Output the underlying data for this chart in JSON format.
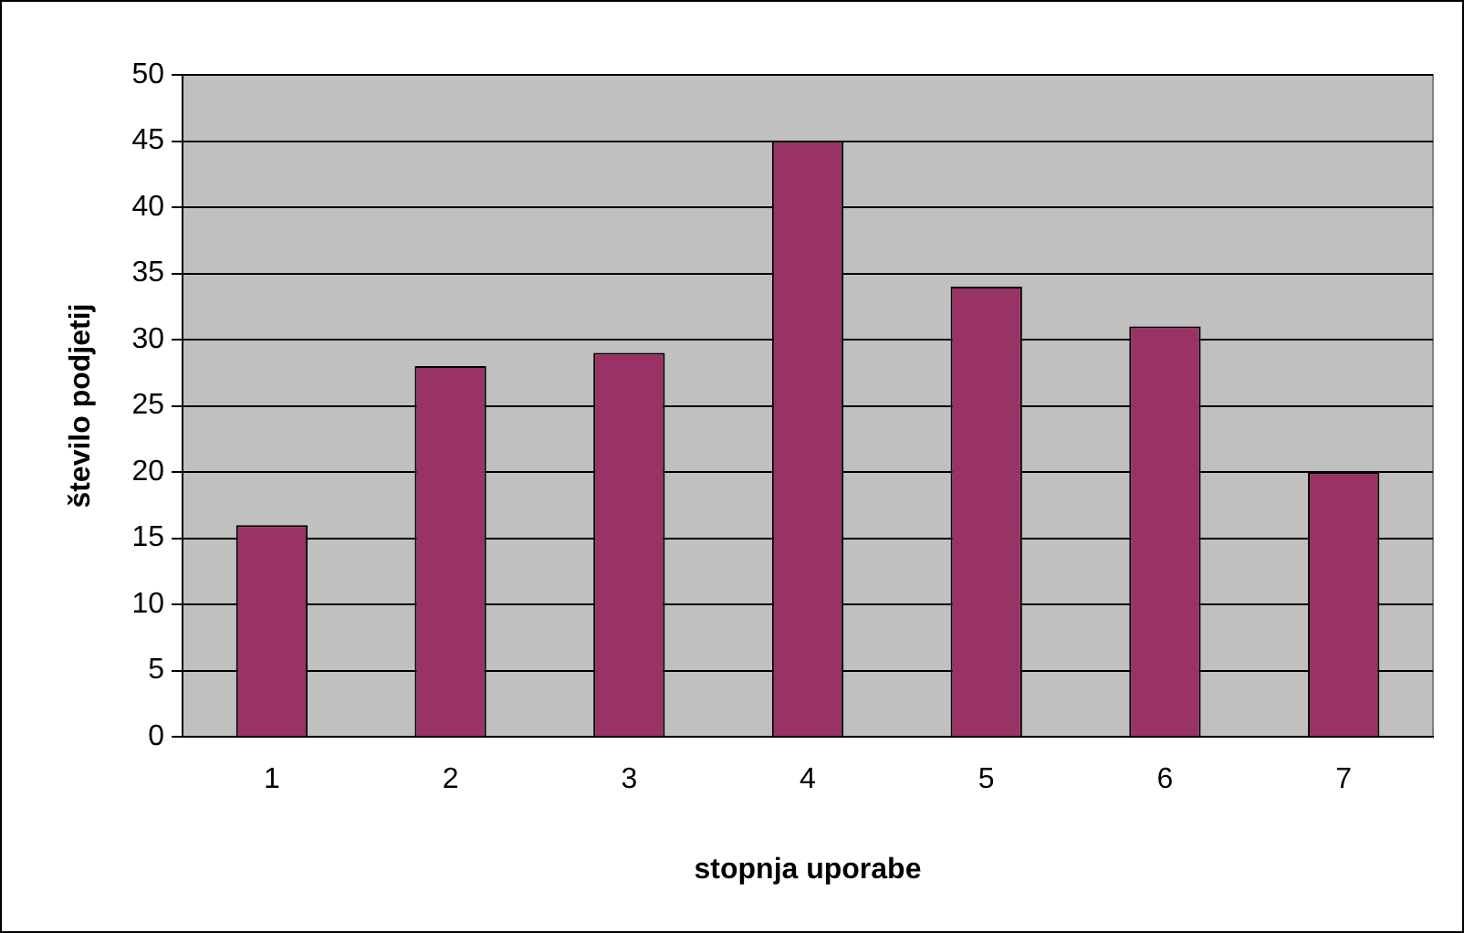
{
  "chart_data": {
    "type": "bar",
    "xlabel": "stopnja uporabe",
    "ylabel": "število podjetij",
    "categories": [
      "1",
      "2",
      "3",
      "4",
      "5",
      "6",
      "7"
    ],
    "values": [
      16,
      28,
      29,
      45,
      34,
      31,
      20
    ],
    "color": "#993366",
    "ylim": [
      0,
      50
    ],
    "yticks": [
      0,
      5,
      10,
      15,
      20,
      25,
      30,
      35,
      40,
      45,
      50
    ],
    "grid": "y",
    "legend": false
  }
}
